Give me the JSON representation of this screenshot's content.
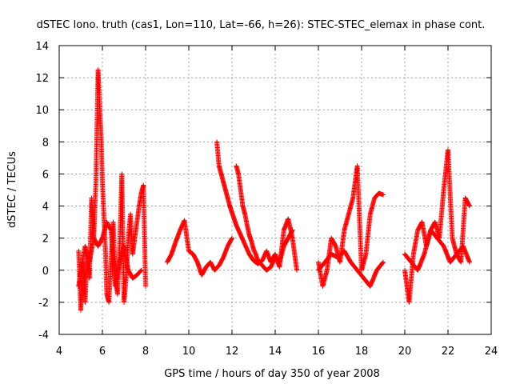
{
  "chart_data": {
    "type": "scatter",
    "title": "dSTEC Iono. truth (cas1, Lon=110, Lat=-66, h=26): STEC-STEC_elemax in phase cont.",
    "xlabel": "GPS time / hours of day 350 of year 2008",
    "ylabel": "dSTEC  / TECUs",
    "xlim": [
      4,
      24
    ],
    "ylim": [
      -4,
      14
    ],
    "xticks": [
      4,
      6,
      8,
      10,
      12,
      14,
      16,
      18,
      20,
      22,
      24
    ],
    "yticks": [
      -4,
      -2,
      0,
      2,
      4,
      6,
      8,
      10,
      12,
      14
    ],
    "grid": true,
    "marker": "+",
    "color": "#ff0000",
    "segments": [
      {
        "x": [
          4.9,
          5.0,
          5.1,
          5.2,
          5.3,
          5.4,
          5.5,
          5.6,
          5.7,
          5.8,
          5.85,
          5.9,
          5.95,
          6.0,
          6.05,
          6.1,
          6.15,
          6.2,
          6.3,
          6.4,
          6.5,
          6.6,
          6.7,
          6.8,
          6.9,
          7.0,
          7.1,
          7.2,
          7.3,
          7.4,
          7.5,
          7.6,
          7.7,
          7.8,
          7.9,
          8.0
        ],
        "y": [
          1.2,
          -2.5,
          0.5,
          -2.0,
          1.0,
          -0.5,
          4.5,
          2.0,
          5.5,
          12.5,
          11.0,
          9.5,
          8.0,
          5.5,
          4.0,
          2.5,
          1.0,
          -1.5,
          -2.0,
          0.5,
          3.0,
          -0.5,
          -1.5,
          1.5,
          6.0,
          -2.0,
          -0.5,
          2.0,
          3.5,
          1.0,
          2.0,
          3.0,
          4.0,
          4.8,
          5.3,
          -1.0
        ]
      },
      {
        "x": [
          4.9,
          5.0,
          5.2,
          5.4,
          5.6,
          5.8,
          6.0,
          6.2,
          6.4,
          6.6,
          6.8,
          7.0,
          7.2,
          7.4,
          7.6,
          7.8
        ],
        "y": [
          -1.0,
          0.0,
          1.5,
          0.5,
          2.0,
          1.5,
          2.0,
          3.0,
          2.5,
          -1.0,
          0.5,
          1.5,
          0.0,
          -0.5,
          -0.3,
          0.0
        ]
      },
      {
        "x": [
          9.0,
          9.2,
          9.4,
          9.6,
          9.8,
          10.0,
          10.2,
          10.4,
          10.6,
          10.8,
          11.0,
          11.2,
          11.4,
          11.6,
          11.8,
          12.0
        ],
        "y": [
          0.5,
          1.0,
          1.8,
          2.5,
          3.1,
          1.2,
          1.0,
          0.5,
          -0.3,
          0.2,
          0.5,
          0.0,
          0.3,
          0.8,
          1.5,
          2.0
        ]
      },
      {
        "x": [
          11.3,
          11.4,
          11.5,
          11.6,
          11.7,
          11.8,
          11.9,
          12.0,
          12.1,
          12.2,
          12.3,
          12.4,
          12.5,
          12.6,
          12.7,
          12.8,
          12.9,
          13.0,
          13.2,
          13.4,
          13.6,
          13.8,
          14.0,
          14.2,
          14.4,
          14.6,
          14.8,
          15.0
        ],
        "y": [
          8.0,
          6.5,
          6.0,
          5.5,
          5.0,
          4.5,
          4.0,
          3.6,
          3.2,
          2.8,
          2.5,
          2.2,
          1.9,
          1.6,
          1.3,
          1.0,
          0.8,
          0.6,
          0.4,
          0.6,
          1.2,
          0.5,
          1.0,
          0.2,
          2.5,
          3.2,
          2.0,
          0.0
        ]
      },
      {
        "x": [
          12.2,
          12.3,
          12.4,
          12.5,
          12.6,
          12.7,
          12.8,
          12.9,
          13.0,
          13.1,
          13.2,
          13.4,
          13.6,
          13.8,
          14.0,
          14.2,
          14.4,
          14.6,
          14.8
        ],
        "y": [
          6.5,
          6.0,
          5.0,
          4.0,
          3.5,
          2.8,
          2.2,
          1.8,
          1.3,
          1.0,
          0.6,
          0.3,
          0.0,
          0.2,
          0.8,
          0.5,
          1.5,
          2.0,
          2.5
        ]
      },
      {
        "x": [
          16.0,
          16.2,
          16.4,
          16.6,
          16.8,
          17.0,
          17.2,
          17.4,
          17.6,
          17.8,
          18.0,
          18.2,
          18.4,
          18.6,
          18.8,
          19.0
        ],
        "y": [
          0.5,
          -1.0,
          0.0,
          2.0,
          1.5,
          0.5,
          2.5,
          3.5,
          4.5,
          6.5,
          0.0,
          1.0,
          3.5,
          4.5,
          4.8,
          4.7
        ]
      },
      {
        "x": [
          16.0,
          16.3,
          16.6,
          16.9,
          17.2,
          17.5,
          17.8,
          18.1,
          18.4,
          18.7,
          19.0
        ],
        "y": [
          0.0,
          0.5,
          1.0,
          0.8,
          1.2,
          0.5,
          0.0,
          -0.5,
          -1.0,
          0.0,
          0.5
        ]
      },
      {
        "x": [
          20.0,
          20.2,
          20.4,
          20.6,
          20.8,
          21.0,
          21.2,
          21.4,
          21.6,
          21.8,
          22.0,
          22.2,
          22.4,
          22.6,
          22.8,
          23.0
        ],
        "y": [
          0.0,
          -2.0,
          1.0,
          2.5,
          3.0,
          1.5,
          2.5,
          3.0,
          2.0,
          5.0,
          7.5,
          2.0,
          1.0,
          0.5,
          4.5,
          4.0
        ]
      },
      {
        "x": [
          20.0,
          20.3,
          20.6,
          20.9,
          21.2,
          21.5,
          21.8,
          22.1,
          22.4,
          22.7,
          23.0
        ],
        "y": [
          1.0,
          0.5,
          0.0,
          1.0,
          2.5,
          2.0,
          1.5,
          0.5,
          1.0,
          1.5,
          0.5
        ]
      }
    ]
  }
}
